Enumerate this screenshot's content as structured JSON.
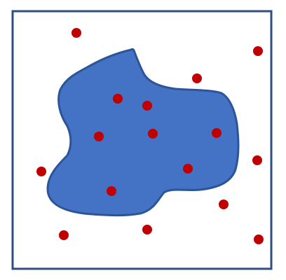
{
  "colors": {
    "background": "#ffffff",
    "frame": "#2f4f80",
    "blob_fill": "#4472c4",
    "blob_stroke": "#2c5599",
    "point": "#c00000"
  },
  "points_inside": 7,
  "points_outside": 10
}
